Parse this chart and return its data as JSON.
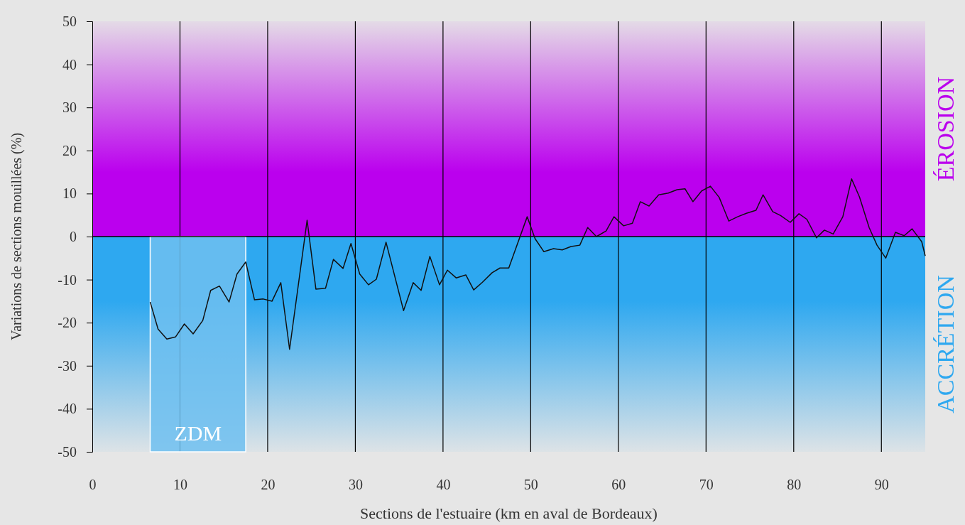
{
  "chart_data": {
    "type": "line",
    "xlabel": "Sections de l'estuaire (km en aval de Bordeaux)",
    "ylabel": "Variations de sections mouillées (%)",
    "xlim": [
      0,
      95
    ],
    "xticks": [
      0,
      10,
      20,
      30,
      40,
      50,
      60,
      70,
      80,
      90
    ],
    "ylim": [
      -50,
      50
    ],
    "yticks": [
      -50,
      -40,
      -30,
      -20,
      -10,
      0,
      10,
      20,
      30,
      40,
      50
    ],
    "grid": "x",
    "marker": "none",
    "line_style": "solid",
    "ref_lines": [
      {
        "axis": "y",
        "value": 0,
        "color": "#000000"
      }
    ],
    "bands": [
      {
        "axis": "y",
        "from": 0,
        "to": 50,
        "label": "ÉROSION",
        "color": "#bb00ee"
      },
      {
        "axis": "y",
        "from": -50,
        "to": 0,
        "label": "ACCRÉTION",
        "color": "#2ea8f0"
      },
      {
        "axis": "x",
        "from": 6.6,
        "to": 17.5,
        "label": "ZDM",
        "color": "#6ec0f0"
      }
    ],
    "series": [
      {
        "color": "#111111",
        "x": [
          6.6,
          7.5,
          8.5,
          9.5,
          10.5,
          11.5,
          12.6,
          13.5,
          14.5,
          15.6,
          16.5,
          17.5,
          18.5,
          19.5,
          20.5,
          21.5,
          22.5,
          24.5,
          25.5,
          26.6,
          27.5,
          28.6,
          29.5,
          30.5,
          31.5,
          32.4,
          33.5,
          35.5,
          36.6,
          37.5,
          38.5,
          39.6,
          40.5,
          41.5,
          42.6,
          43.5,
          44.5,
          45.6,
          46.5,
          47.5,
          49.6,
          50.5,
          51.5,
          52.6,
          53.6,
          54.6,
          55.6,
          56.5,
          57.5,
          58.6,
          59.5,
          60.6,
          61.6,
          62.5,
          63.5,
          64.6,
          65.7,
          66.7,
          67.6,
          68.5,
          69.5,
          70.5,
          71.5,
          72.6,
          73.6,
          74.6,
          75.7,
          76.5,
          77.6,
          78.5,
          79.6,
          80.6,
          81.5,
          82.6,
          83.5,
          84.5,
          85.6,
          86.6,
          87.5,
          88.6,
          89.5,
          90.5,
          91.6,
          92.6,
          93.5,
          94.6,
          95
        ],
        "values": [
          -15.2,
          -21.5,
          -23.8,
          -23.3,
          -20.3,
          -22.6,
          -19.5,
          -12.5,
          -11.5,
          -15.2,
          -8.7,
          -5.9,
          -14.7,
          -14.5,
          -15,
          -10.7,
          -26.2,
          3.8,
          -12.2,
          -12,
          -5.3,
          -7.4,
          -1.6,
          -8.7,
          -11.2,
          -9.9,
          -1.3,
          -17.2,
          -10.7,
          -12.5,
          -4.6,
          -11.2,
          -7.8,
          -9.6,
          -8.9,
          -12.4,
          -10.6,
          -8.4,
          -7.3,
          -7.3,
          4.6,
          -0.5,
          -3.5,
          -2.8,
          -3.1,
          -2.3,
          -2,
          2.1,
          0,
          1.3,
          4.6,
          2.5,
          3.1,
          8.1,
          7.1,
          9.7,
          10.1,
          10.9,
          11.1,
          8.1,
          10.6,
          11.7,
          9.1,
          3.6,
          4.6,
          5.4,
          6.1,
          9.7,
          5.8,
          4.9,
          3.3,
          5.3,
          4,
          -0.3,
          1.5,
          0.6,
          4.6,
          13.4,
          9.2,
          2.1,
          -2,
          -5,
          1,
          0.2,
          1.8,
          -1.2,
          -4.5
        ]
      }
    ]
  }
}
